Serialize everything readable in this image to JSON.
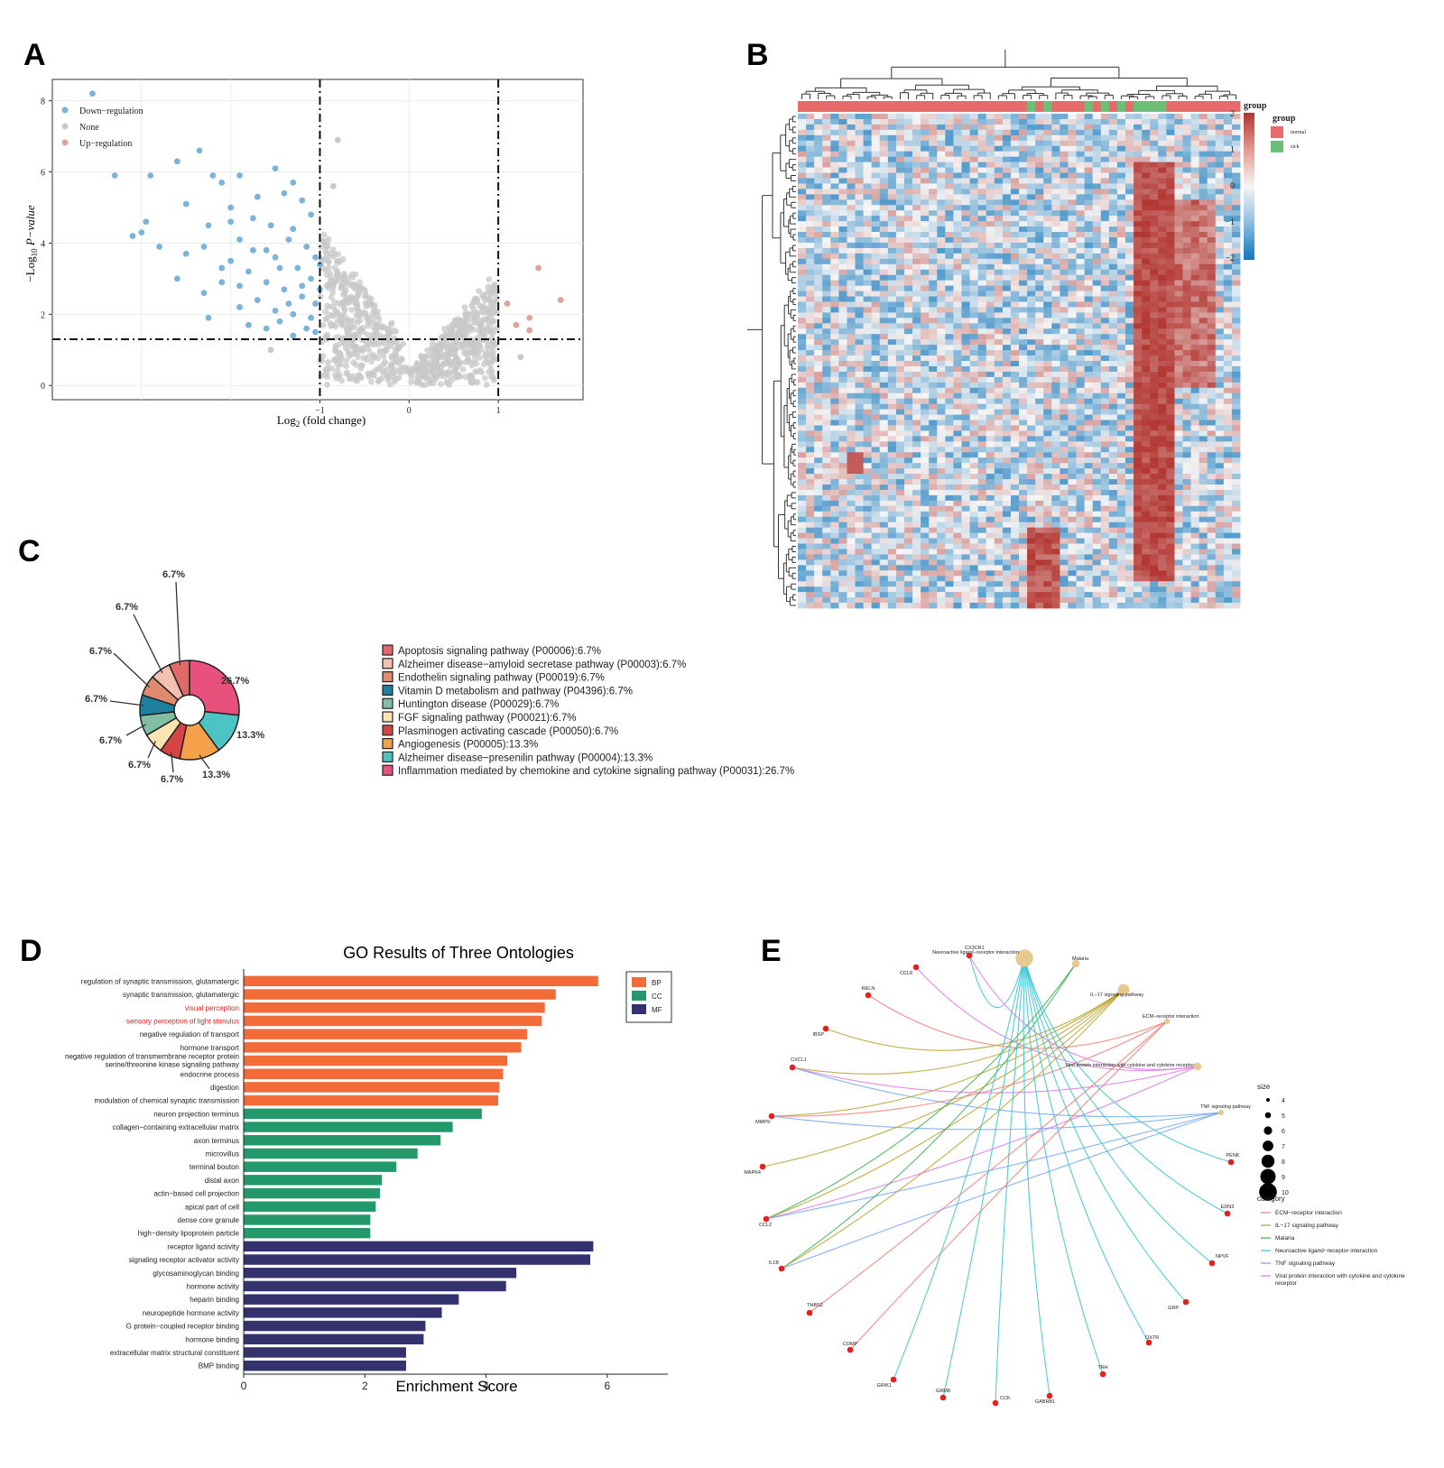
{
  "panels": {
    "A": "A",
    "B": "B",
    "C": "C",
    "D": "D",
    "E": "E"
  },
  "chart_data": [
    {
      "panel": "A",
      "type": "scatter",
      "xlabel": "Log2 (fold change)",
      "ylabel": "−Log10 P-value",
      "xlim": [
        -4.0,
        1.95
      ],
      "ylim": [
        -0.4,
        8.6
      ],
      "x_ticks": [
        "−1",
        "0",
        "1"
      ],
      "y_ticks": [
        "0",
        "2",
        "4",
        "6",
        "8"
      ],
      "thresholds": {
        "x": [
          -1,
          1
        ],
        "y": 1.3
      },
      "legend": [
        "Down−regulation",
        "None",
        "Up−regulation"
      ],
      "colors": {
        "down": "#7ab5d9",
        "none": "#c8c8c8",
        "up": "#e0a49f"
      },
      "down_points": [
        [
          -3.55,
          8.2
        ],
        [
          -2.35,
          6.6
        ],
        [
          -2.6,
          6.3
        ],
        [
          -3.3,
          5.9
        ],
        [
          -2.9,
          5.9
        ],
        [
          -2.2,
          5.9
        ],
        [
          -1.9,
          5.9
        ],
        [
          -1.5,
          6.1
        ],
        [
          -2.1,
          5.7
        ],
        [
          -1.3,
          5.7
        ],
        [
          -2.5,
          5.1
        ],
        [
          -2.0,
          5.0
        ],
        [
          -1.7,
          5.3
        ],
        [
          -1.4,
          5.4
        ],
        [
          -1.2,
          5.2
        ],
        [
          -2.25,
          4.5
        ],
        [
          -2.0,
          4.6
        ],
        [
          -1.75,
          4.7
        ],
        [
          -1.55,
          4.5
        ],
        [
          -1.3,
          4.4
        ],
        [
          -1.1,
          4.8
        ],
        [
          -2.95,
          4.6
        ],
        [
          -3.1,
          4.2
        ],
        [
          -3.0,
          4.3
        ],
        [
          -2.8,
          3.9
        ],
        [
          -2.5,
          3.7
        ],
        [
          -2.3,
          3.9
        ],
        [
          -1.9,
          4.1
        ],
        [
          -1.6,
          3.8
        ],
        [
          -1.35,
          4.1
        ],
        [
          -1.15,
          3.9
        ],
        [
          -1.05,
          3.6
        ],
        [
          -2.0,
          3.5
        ],
        [
          -1.8,
          3.2
        ],
        [
          -1.45,
          3.3
        ],
        [
          -1.25,
          3.3
        ],
        [
          -1.1,
          3.0
        ],
        [
          -1.9,
          2.8
        ],
        [
          -1.6,
          2.9
        ],
        [
          -1.4,
          2.7
        ],
        [
          -1.2,
          2.5
        ],
        [
          -1.05,
          2.3
        ],
        [
          -2.3,
          2.6
        ],
        [
          -2.1,
          2.9
        ],
        [
          -2.6,
          3.0
        ],
        [
          -1.7,
          2.4
        ],
        [
          -1.5,
          2.1
        ],
        [
          -1.3,
          2.0
        ],
        [
          -1.1,
          1.9
        ],
        [
          -1.9,
          2.2
        ],
        [
          -2.25,
          1.9
        ],
        [
          -1.6,
          1.6
        ],
        [
          -1.3,
          1.4
        ],
        [
          -1.15,
          1.6
        ],
        [
          -1.45,
          1.8
        ],
        [
          -1.8,
          1.7
        ],
        [
          -1.05,
          1.5
        ],
        [
          -1.0,
          2.7
        ],
        [
          -1.0,
          3.4
        ],
        [
          -1.5,
          3.6
        ],
        [
          -1.75,
          3.8
        ],
        [
          -2.1,
          3.3
        ],
        [
          -1.2,
          2.8
        ],
        [
          -1.35,
          2.3
        ]
      ],
      "up_points": [
        [
          1.45,
          3.3
        ],
        [
          1.7,
          2.4
        ],
        [
          1.1,
          2.3
        ],
        [
          1.35,
          1.9
        ],
        [
          1.2,
          1.7
        ],
        [
          1.35,
          1.55
        ]
      ],
      "none_points": [
        [
          -0.8,
          6.9
        ],
        [
          -0.85,
          5.6
        ],
        [
          -1.55,
          1.0
        ],
        [
          1.25,
          0.8
        ]
      ]
    },
    {
      "panel": "B",
      "type": "heatmap",
      "legend_title": "group",
      "color_scale_ticks": [
        "2",
        "1",
        "0",
        "−1",
        "−2"
      ],
      "groups": [
        {
          "name": "normal",
          "color": "#e86b6b"
        },
        {
          "name": "sick",
          "color": "#6dbf75"
        }
      ]
    },
    {
      "panel": "C",
      "type": "pie",
      "labels": [
        "Inflammation mediated by chemokine and cytokine signaling pathway (P00031):26.7%",
        "Alzheimer disease−presenilin pathway (P00004):13.3%",
        "Angiogenesis (P00005):13.3%",
        "Plasminogen activating cascade (P00050):6.7%",
        "FGF signaling pathway (P00021):6.7%",
        "Huntington disease (P00029):6.7%",
        "Vitamin D metabolism and pathway (P04396):6.7%",
        "Endothelin signaling pathway (P00019):6.7%",
        "Alzheimer disease−amyloid secretase pathway (P00003):6.7%",
        "Apoptosis signaling pathway (P00006):6.7%"
      ],
      "values": [
        26.7,
        13.3,
        13.3,
        6.7,
        6.7,
        6.7,
        6.7,
        6.7,
        6.7,
        6.7
      ],
      "value_labels": [
        "26.7%",
        "13.3%",
        "13.3%",
        "6.7%",
        "6.7%",
        "6.7%",
        "6.7%",
        "6.7%",
        "6.7%",
        "6.7%"
      ],
      "colors": [
        "#e8517c",
        "#4cc4c4",
        "#f5a04a",
        "#d64545",
        "#fae5b0",
        "#80bfa5",
        "#1e7f9e",
        "#e08a6e",
        "#f5c0b0",
        "#e06a6a"
      ],
      "legend_order": [
        9,
        8,
        7,
        6,
        5,
        4,
        3,
        2,
        1,
        0
      ]
    },
    {
      "panel": "D",
      "type": "bar",
      "title": "GO Results of Three Ontologies",
      "xlabel": "Enrichment Score",
      "xlim": [
        0,
        7
      ],
      "x_ticks": [
        "0",
        "2",
        "4",
        "6"
      ],
      "legend": [
        {
          "name": "BP",
          "color": "#f26b38"
        },
        {
          "name": "CC",
          "color": "#23996b"
        },
        {
          "name": "MF",
          "color": "#33326e"
        }
      ],
      "bars": [
        {
          "label": "regulation of synaptic transmission, glutamatergic",
          "value": 5.85,
          "group": "BP"
        },
        {
          "label": "synaptic transmission, glutamatergic",
          "value": 5.15,
          "group": "BP"
        },
        {
          "label": "visual perception",
          "value": 4.97,
          "group": "BP",
          "highlight": true
        },
        {
          "label": "sensory perception of light stimulus",
          "value": 4.92,
          "group": "BP",
          "highlight": true
        },
        {
          "label": "negative regulation of transport",
          "value": 4.68,
          "group": "BP"
        },
        {
          "label": "hormone transport",
          "value": 4.58,
          "group": "BP"
        },
        {
          "label": "negative regulation of transmembrane receptor protein serine/threonine kinase signaling pathway",
          "value": 4.35,
          "group": "BP",
          "lines": [
            "negative regulation of transmembrane receptor protein",
            "serine/threonine kinase signaling pathway"
          ]
        },
        {
          "label": "endocrine process",
          "value": 4.28,
          "group": "BP"
        },
        {
          "label": "digestion",
          "value": 4.22,
          "group": "BP"
        },
        {
          "label": "modulation of chemical synaptic transmission",
          "value": 4.2,
          "group": "BP"
        },
        {
          "label": "neuron projection terminus",
          "value": 3.93,
          "group": "CC"
        },
        {
          "label": "collagen−containing extracellular matrix",
          "value": 3.45,
          "group": "CC"
        },
        {
          "label": "axon terminus",
          "value": 3.25,
          "group": "CC"
        },
        {
          "label": "microvillus",
          "value": 2.87,
          "group": "CC"
        },
        {
          "label": "terminal bouton",
          "value": 2.52,
          "group": "CC"
        },
        {
          "label": "distal axon",
          "value": 2.28,
          "group": "CC"
        },
        {
          "label": "actin−based cell projection",
          "value": 2.25,
          "group": "CC"
        },
        {
          "label": "apical part of cell",
          "value": 2.18,
          "group": "CC"
        },
        {
          "label": "dense core granule",
          "value": 2.09,
          "group": "CC"
        },
        {
          "label": "high−density lipoprotein particle",
          "value": 2.09,
          "group": "CC"
        },
        {
          "label": "receptor ligand activity",
          "value": 5.77,
          "group": "MF"
        },
        {
          "label": "signaling receptor activator activity",
          "value": 5.72,
          "group": "MF"
        },
        {
          "label": "glycosaminoglycan binding",
          "value": 4.5,
          "group": "MF"
        },
        {
          "label": "hormone activity",
          "value": 4.33,
          "group": "MF"
        },
        {
          "label": "heparin binding",
          "value": 3.55,
          "group": "MF"
        },
        {
          "label": "neuropeptide hormone activity",
          "value": 3.27,
          "group": "MF"
        },
        {
          "label": "G protein−coupled receptor binding",
          "value": 3.0,
          "group": "MF"
        },
        {
          "label": "hormone binding",
          "value": 2.97,
          "group": "MF"
        },
        {
          "label": "extracellular matrix structural constituent",
          "value": 2.68,
          "group": "MF"
        },
        {
          "label": "BMP binding",
          "value": 2.68,
          "group": "MF"
        }
      ]
    },
    {
      "panel": "E",
      "type": "network",
      "pathways": [
        {
          "name": "Neuroactive ligand−receptor interaction",
          "size": 10,
          "color": "#34c3d1"
        },
        {
          "name": "Malaria",
          "size": 5,
          "color": "#3dae4f"
        },
        {
          "name": "IL−17 signaling pathway",
          "size": 7,
          "color": "#b8a12b"
        },
        {
          "name": "ECM−receptor interaction",
          "size": 4,
          "color": "#f07d73"
        },
        {
          "name": "Viral protein interaction with cytokine and cytokine receptor",
          "size": 5,
          "color": "#e174e8"
        },
        {
          "name": "TNF signaling pathway",
          "size": 4,
          "color": "#6fa5f3"
        }
      ],
      "genes": [
        "CX3CR1",
        "CCL8",
        "RELN",
        "IBSP",
        "CXCL1",
        "MMP9",
        "MAPK4",
        "CCL2",
        "IL1B",
        "THBS2",
        "COMP",
        "GRIK1",
        "GRM8",
        "CCK",
        "GABRB1",
        "TRH",
        "OXTR",
        "GRP",
        "NPVF",
        "EDN3",
        "PENK"
      ],
      "edges": [
        [
          0,
          0
        ],
        [
          0,
          4
        ],
        [
          1,
          4
        ],
        [
          2,
          3
        ],
        [
          3,
          2
        ],
        [
          4,
          2
        ],
        [
          4,
          4
        ],
        [
          4,
          5
        ],
        [
          5,
          2
        ],
        [
          5,
          3
        ],
        [
          5,
          5
        ],
        [
          6,
          2
        ],
        [
          7,
          1
        ],
        [
          7,
          2
        ],
        [
          7,
          4
        ],
        [
          7,
          5
        ],
        [
          8,
          1
        ],
        [
          8,
          2
        ],
        [
          8,
          5
        ],
        [
          9,
          3
        ],
        [
          10,
          3
        ],
        [
          11,
          0
        ],
        [
          12,
          0
        ],
        [
          13,
          0
        ],
        [
          14,
          0
        ],
        [
          15,
          0
        ],
        [
          16,
          0
        ],
        [
          17,
          0
        ],
        [
          18,
          0
        ],
        [
          19,
          0
        ],
        [
          20,
          0
        ]
      ],
      "size_legend_title": "size",
      "size_ticks": [
        "4",
        "5",
        "6",
        "7",
        "8",
        "9",
        "10"
      ],
      "category_legend_title": "category",
      "category_legend": [
        {
          "name": "ECM−receptor interaction",
          "color": "#f07d73"
        },
        {
          "name": "IL−17 signaling pathway",
          "color": "#b8a12b"
        },
        {
          "name": "Malaria",
          "color": "#3dae4f"
        },
        {
          "name": "Neuroactive ligand−receptor interaction",
          "color": "#34c3d1"
        },
        {
          "name": "TNF signaling pathway",
          "color": "#6fa5f3"
        },
        {
          "name": "Viral protein interaction with cytokine and cytokine receptor",
          "color": "#e174e8",
          "lines": [
            "Viral protein interaction with cytokine and cytokine",
            "receptor"
          ]
        }
      ]
    }
  ]
}
